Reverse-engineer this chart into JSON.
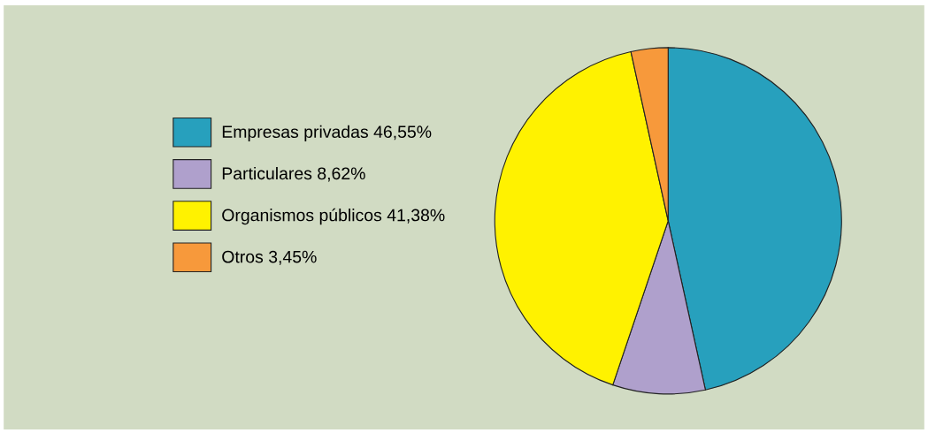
{
  "chart_data": {
    "type": "pie",
    "categories": [
      "Empresas privadas",
      "Particulares",
      "Organismos públicos",
      "Otros"
    ],
    "values": [
      46.55,
      8.62,
      41.38,
      3.45
    ],
    "value_labels": [
      "46,55%",
      "8,62%",
      "41,38%",
      "3,45%"
    ],
    "colors": [
      "#27a0bd",
      "#afa0cc",
      "#fff200",
      "#f7993b"
    ],
    "legend": "left"
  }
}
